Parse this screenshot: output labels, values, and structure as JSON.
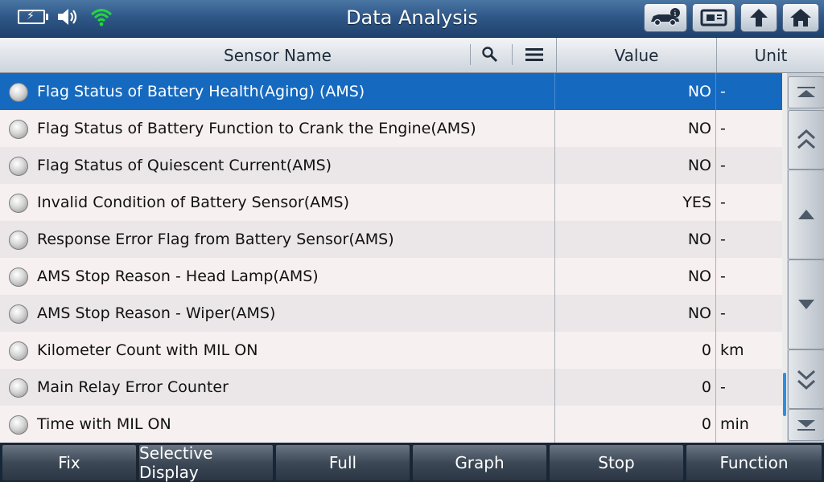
{
  "app": {
    "title": "Data Analysis"
  },
  "status_icons": [
    "battery-charging-icon",
    "speaker-icon",
    "wifi-icon"
  ],
  "toolbar_icons": [
    "vehicle-info-icon",
    "print-screen-icon",
    "up-arrow-icon",
    "home-icon"
  ],
  "table": {
    "headers": {
      "sensor": "Sensor Name",
      "value": "Value",
      "unit": "Unit"
    },
    "header_icons": [
      "search-icon",
      "menu-icon"
    ],
    "rows": [
      {
        "name": "Flag Status of Battery Health(Aging) (AMS)",
        "value": "NO",
        "unit": "-",
        "selected": true
      },
      {
        "name": "Flag Status of Battery Function to Crank the Engine(AMS)",
        "value": "NO",
        "unit": "-"
      },
      {
        "name": "Flag Status of Quiescent Current(AMS)",
        "value": "NO",
        "unit": "-"
      },
      {
        "name": "Invalid Condition of Battery Sensor(AMS)",
        "value": "YES",
        "unit": "-"
      },
      {
        "name": "Response Error Flag from Battery Sensor(AMS)",
        "value": "NO",
        "unit": "-"
      },
      {
        "name": "AMS Stop Reason - Head Lamp(AMS)",
        "value": "NO",
        "unit": "-"
      },
      {
        "name": "AMS Stop Reason - Wiper(AMS)",
        "value": "NO",
        "unit": "-"
      },
      {
        "name": "Kilometer Count with MIL ON",
        "value": "0",
        "unit": "km"
      },
      {
        "name": "Main Relay Error Counter",
        "value": "0",
        "unit": "-"
      },
      {
        "name": "Time with MIL ON",
        "value": "0",
        "unit": "min"
      }
    ]
  },
  "side_nav_icons": [
    "scroll-top-icon",
    "page-up-icon",
    "line-up-icon",
    "line-down-icon",
    "page-down-icon",
    "scroll-bottom-icon"
  ],
  "bottom_buttons": [
    {
      "label": "Fix"
    },
    {
      "label": "Selective Display"
    },
    {
      "label": "Full"
    },
    {
      "label": "Graph"
    },
    {
      "label": "Stop"
    },
    {
      "label": "Function"
    }
  ],
  "colors": {
    "title_bar": "#2f5888",
    "selected_row": "#1569bf",
    "wifi": "#22d63a",
    "scroll_thumb": "#2a8fe0"
  }
}
